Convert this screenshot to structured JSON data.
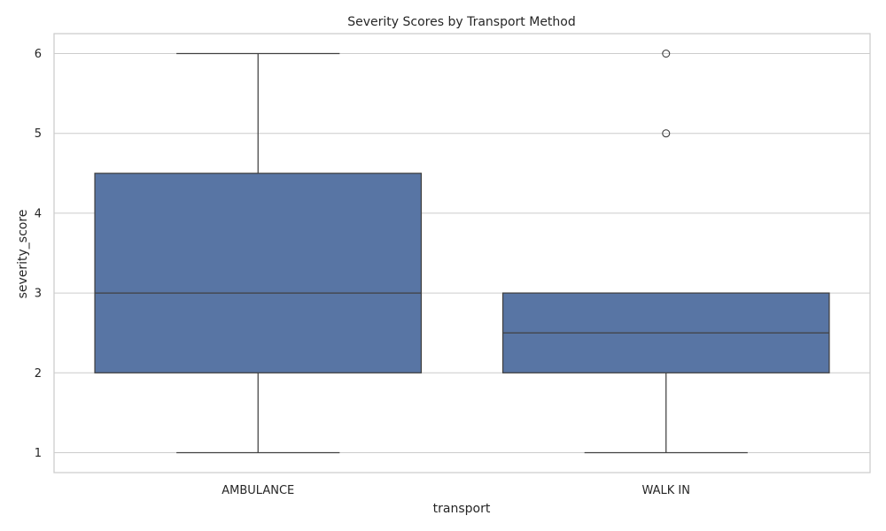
{
  "chart_data": {
    "type": "box",
    "title": "Severity Scores by Transport Method",
    "xlabel": "transport",
    "ylabel": "severity_score",
    "ylim": [
      0.75,
      6.25
    ],
    "yticks": [
      1,
      2,
      3,
      4,
      5,
      6
    ],
    "grid": "horizontal",
    "box_color": "#5875a4",
    "line_color": "#404040",
    "grid_color": "#cccccc",
    "frame_color": "#cccccc",
    "categories": [
      "AMBULANCE",
      "WALK IN"
    ],
    "boxes": [
      {
        "category": "AMBULANCE",
        "whisker_low": 1,
        "q1": 2,
        "median": 3,
        "q3": 4.5,
        "whisker_high": 6,
        "outliers": []
      },
      {
        "category": "WALK IN",
        "whisker_low": 1,
        "q1": 2,
        "median": 2.5,
        "q3": 3,
        "whisker_high": 3,
        "outliers": [
          5,
          6
        ]
      }
    ]
  }
}
